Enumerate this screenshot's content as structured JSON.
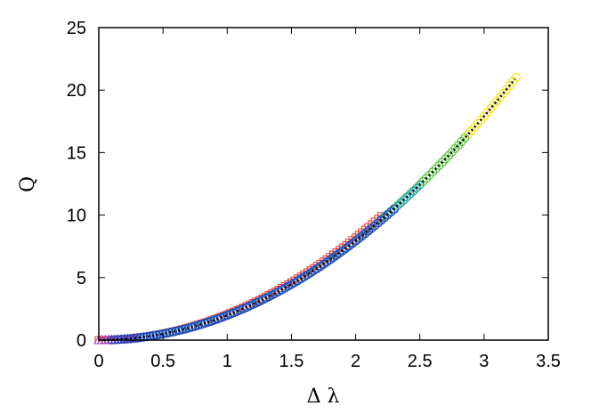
{
  "chart_data": {
    "type": "scatter",
    "xlabel": "Δ λ",
    "ylabel": "Q",
    "xlim": [
      0,
      3.5
    ],
    "ylim": [
      0,
      25
    ],
    "xticks": [
      "0",
      "0.5",
      "1",
      "1.5",
      "2",
      "2.5",
      "3",
      "3.5"
    ],
    "yticks": [
      "0",
      "5",
      "10",
      "15",
      "20",
      "25"
    ],
    "grid": false,
    "legend": "none",
    "series": [
      {
        "color": "#e8352a",
        "marker": "square",
        "x_range": [
          0.0,
          2.2
        ],
        "coef": 2.05
      },
      {
        "color": "#f0e000",
        "marker": "circle",
        "x_range": [
          2.5,
          3.25
        ],
        "coef": 1.99
      },
      {
        "color": "#40c040",
        "marker": "circle",
        "x_range": [
          2.2,
          2.85
        ],
        "coef": 1.99
      },
      {
        "color": "#20a0c0",
        "marker": "diamond",
        "x_range": [
          0.2,
          2.5
        ],
        "coef": 1.98
      },
      {
        "color": "#a040c0",
        "marker": "triangle",
        "x_range": [
          0.0,
          0.3
        ],
        "coef": 1.98
      },
      {
        "color": "#2040c0",
        "marker": "circle",
        "x_range": [
          0.1,
          2.3
        ],
        "coef": 1.98
      }
    ],
    "fit": {
      "color": "#000000",
      "style": "dotted",
      "x_range": [
        0.0,
        3.25
      ],
      "coef": 1.99
    }
  }
}
